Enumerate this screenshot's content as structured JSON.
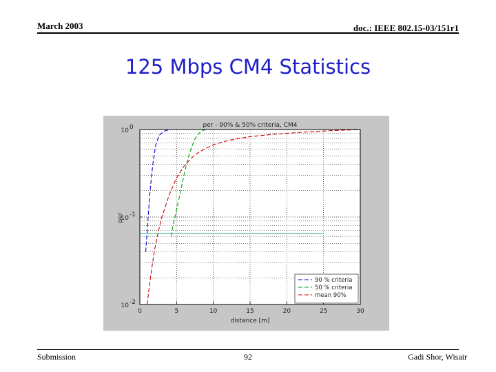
{
  "header": {
    "date": "March 2003",
    "doc": "doc.: IEEE 802.15-03/151r1"
  },
  "slide": {
    "title": "125 Mbps CM4 Statistics"
  },
  "footer": {
    "submission": "Submission",
    "page": "92",
    "author": "Gadi Shor, Wisair"
  },
  "chart_data": {
    "type": "line",
    "title": "per - 90% & 50% criteria, CM4",
    "xlabel": "distance [m]",
    "ylabel": "per",
    "xlim": [
      0,
      30
    ],
    "ylim": [
      0.01,
      1
    ],
    "yscale": "log",
    "xticks": [
      0,
      5,
      10,
      15,
      20,
      25,
      30
    ],
    "xtick_labels": [
      "0",
      "5",
      "10",
      "15",
      "20",
      "25",
      "30"
    ],
    "ytick_labels": [
      {
        "value": 1,
        "base": "10",
        "exp": "0"
      },
      {
        "value": 0.1,
        "base": "10",
        "exp": "-1"
      },
      {
        "value": 0.01,
        "base": "10",
        "exp": "-2"
      }
    ],
    "grid": true,
    "legend_position": "bottom-right",
    "series": [
      {
        "name": "90 % criteria",
        "color": "#0000cc",
        "style": "dashed",
        "x": [
          0.8,
          1.0,
          1.2,
          1.4,
          1.6,
          1.8,
          2.0,
          2.2,
          2.6,
          3.2,
          4.0,
          30
        ],
        "y": [
          0.04,
          0.07,
          0.12,
          0.2,
          0.3,
          0.42,
          0.55,
          0.68,
          0.85,
          0.95,
          1.0,
          1.0
        ]
      },
      {
        "name": "50 % criteria",
        "color": "#00a000",
        "style": "dashed",
        "x": [
          4.3,
          4.5,
          5.0,
          5.5,
          6.0,
          6.5,
          7.0,
          7.5,
          8.0,
          8.5,
          9.0,
          30
        ],
        "y": [
          0.06,
          0.08,
          0.12,
          0.19,
          0.3,
          0.45,
          0.62,
          0.78,
          0.9,
          0.97,
          1.0,
          1.0
        ]
      },
      {
        "name": "mean 90%",
        "color": "#cc0000",
        "style": "dashed",
        "x": [
          1.0,
          1.2,
          1.5,
          2.0,
          2.5,
          3.0,
          4.0,
          5.0,
          6.0,
          7.0,
          8.0,
          10.0,
          12.0,
          15.0,
          18.0,
          22.0,
          26.0,
          30.0
        ],
        "y": [
          0.01,
          0.014,
          0.022,
          0.042,
          0.068,
          0.1,
          0.18,
          0.28,
          0.38,
          0.47,
          0.55,
          0.67,
          0.75,
          0.83,
          0.88,
          0.93,
          0.97,
          1.0
        ]
      },
      {
        "name": "",
        "color": "#3cb08c",
        "style": "solid",
        "x": [
          0,
          25
        ],
        "y": [
          0.065,
          0.065
        ]
      }
    ]
  }
}
